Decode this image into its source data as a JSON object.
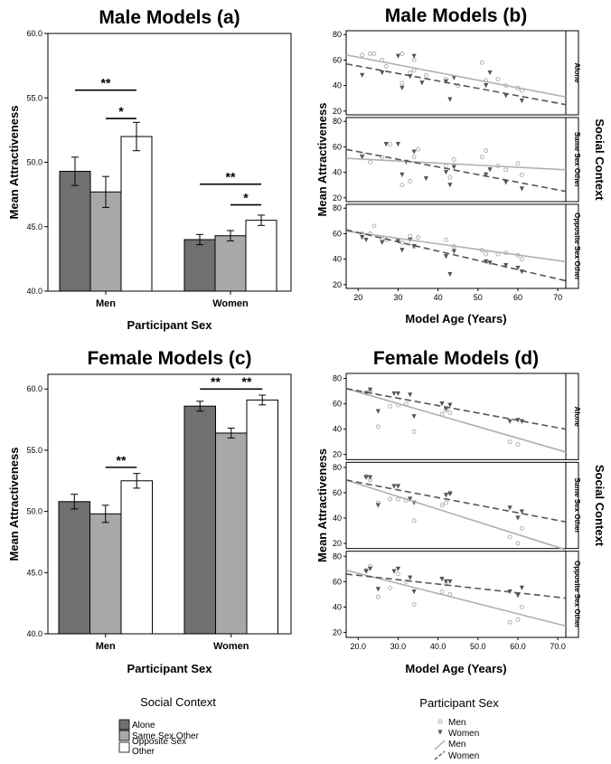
{
  "chart_data": [
    {
      "id": "a",
      "type": "bar",
      "title": "Male Models (a)",
      "xlabel": "Participant Sex",
      "ylabel": "Mean Attractiveness",
      "ylim": [
        40,
        60
      ],
      "yticks": [
        "40.0",
        "45.0",
        "50.0",
        "55.0",
        "60.0"
      ],
      "categories": [
        "Men",
        "Women"
      ],
      "series": [
        {
          "name": "Alone",
          "color": "#707070",
          "values": [
            49.3,
            44.0
          ],
          "error": [
            1.1,
            0.4
          ]
        },
        {
          "name": "Same Sex Other",
          "color": "#a8a8a8",
          "values": [
            47.7,
            44.3
          ],
          "error": [
            1.2,
            0.4
          ]
        },
        {
          "name": "Opposite Sex Other",
          "color": "#ffffff",
          "values": [
            52.0,
            45.5
          ],
          "error": [
            1.1,
            0.4
          ]
        }
      ],
      "significance": [
        {
          "label": "**",
          "group": 0,
          "from": 0,
          "to": 2,
          "y": 55.6
        },
        {
          "label": "*",
          "group": 0,
          "from": 1,
          "to": 2,
          "y": 53.4
        },
        {
          "label": "**",
          "group": 1,
          "from": 0,
          "to": 2,
          "y": 48.3
        },
        {
          "label": "*",
          "group": 1,
          "from": 1,
          "to": 2,
          "y": 46.7
        }
      ]
    },
    {
      "id": "b",
      "type": "scatter",
      "title": "Male Models (b)",
      "xlabel": "Model Age (Years)",
      "ylabel": "Mean Attractiveness",
      "facet_label": "Social Context",
      "xlim": [
        17,
        72
      ],
      "ylim": [
        17,
        83
      ],
      "xticks": [
        "20",
        "30",
        "40",
        "50",
        "60",
        "70"
      ],
      "yticks": [
        "20",
        "40",
        "60",
        "80"
      ],
      "panels": [
        {
          "name": "Alone",
          "men": [
            [
              21,
              64
            ],
            [
              23,
              65
            ],
            [
              24,
              65
            ],
            [
              26,
              60
            ],
            [
              27,
              55
            ],
            [
              31,
              42
            ],
            [
              31,
              65
            ],
            [
              33,
              50
            ],
            [
              34,
              60
            ],
            [
              34,
              52
            ],
            [
              37,
              48
            ],
            [
              42,
              45
            ],
            [
              45,
              40
            ],
            [
              51,
              58
            ],
            [
              52,
              44
            ],
            [
              55,
              45
            ],
            [
              57,
              40
            ],
            [
              60,
              38
            ],
            [
              61,
              36
            ]
          ],
          "women": [
            [
              21,
              48
            ],
            [
              26,
              50
            ],
            [
              30,
              63
            ],
            [
              31,
              38
            ],
            [
              33,
              47
            ],
            [
              34,
              63
            ],
            [
              36,
              42
            ],
            [
              42,
              43
            ],
            [
              43,
              29
            ],
            [
              44,
              46
            ],
            [
              52,
              40
            ],
            [
              53,
              50
            ],
            [
              57,
              32
            ],
            [
              61,
              28
            ]
          ],
          "men_line": [
            [
              17,
              64
            ],
            [
              72,
              31
            ]
          ],
          "women_line": [
            [
              17,
              57
            ],
            [
              72,
              25
            ]
          ]
        },
        {
          "name": "Same Sex Other",
          "men": [
            [
              21,
              54
            ],
            [
              23,
              48
            ],
            [
              26,
              52
            ],
            [
              28,
              62
            ],
            [
              31,
              30
            ],
            [
              33,
              33
            ],
            [
              34,
              52
            ],
            [
              35,
              58
            ],
            [
              42,
              45
            ],
            [
              43,
              36
            ],
            [
              44,
              50
            ],
            [
              51,
              52
            ],
            [
              52,
              57
            ],
            [
              55,
              45
            ],
            [
              57,
              42
            ],
            [
              60,
              47
            ],
            [
              61,
              38
            ]
          ],
          "women": [
            [
              21,
              52
            ],
            [
              27,
              62
            ],
            [
              30,
              62
            ],
            [
              31,
              38
            ],
            [
              32,
              48
            ],
            [
              34,
              56
            ],
            [
              37,
              35
            ],
            [
              42,
              40
            ],
            [
              43,
              30
            ],
            [
              44,
              44
            ],
            [
              52,
              38
            ],
            [
              53,
              42
            ],
            [
              57,
              32
            ],
            [
              61,
              27
            ]
          ],
          "men_line": [
            [
              17,
              51
            ],
            [
              72,
              42
            ]
          ],
          "women_line": [
            [
              17,
              58
            ],
            [
              72,
              25
            ]
          ]
        },
        {
          "name": "Opposite Sex Other",
          "men": [
            [
              21,
              60
            ],
            [
              23,
              60
            ],
            [
              24,
              66
            ],
            [
              26,
              56
            ],
            [
              27,
              55
            ],
            [
              31,
              53
            ],
            [
              33,
              58
            ],
            [
              34,
              50
            ],
            [
              35,
              57
            ],
            [
              42,
              55
            ],
            [
              44,
              50
            ],
            [
              51,
              47
            ],
            [
              52,
              44
            ],
            [
              55,
              44
            ],
            [
              57,
              45
            ],
            [
              60,
              43
            ],
            [
              61,
              40
            ]
          ],
          "women": [
            [
              21,
              57
            ],
            [
              22,
              55
            ],
            [
              26,
              53
            ],
            [
              30,
              54
            ],
            [
              31,
              47
            ],
            [
              33,
              55
            ],
            [
              34,
              50
            ],
            [
              42,
              42
            ],
            [
              43,
              28
            ],
            [
              44,
              46
            ],
            [
              52,
              38
            ],
            [
              53,
              37
            ],
            [
              57,
              35
            ],
            [
              60,
              33
            ],
            [
              61,
              30
            ]
          ],
          "men_line": [
            [
              17,
              62
            ],
            [
              72,
              38
            ]
          ],
          "women_line": [
            [
              17,
              63
            ],
            [
              72,
              23
            ]
          ]
        }
      ]
    },
    {
      "id": "c",
      "type": "bar",
      "title": "Female Models (c)",
      "xlabel": "Participant Sex",
      "ylabel": "Mean Attractiveness",
      "ylim": [
        40,
        61.2
      ],
      "yticks": [
        "40.0",
        "45.0",
        "50.0",
        "55.0",
        "60.0"
      ],
      "categories": [
        "Men",
        "Women"
      ],
      "series": [
        {
          "name": "Alone",
          "color": "#707070",
          "values": [
            50.8,
            58.6
          ],
          "error": [
            0.6,
            0.4
          ]
        },
        {
          "name": "Same Sex Other",
          "color": "#a8a8a8",
          "values": [
            49.8,
            56.4
          ],
          "error": [
            0.7,
            0.4
          ]
        },
        {
          "name": "Opposite Sex Other",
          "color": "#ffffff",
          "values": [
            52.5,
            59.1
          ],
          "error": [
            0.6,
            0.4
          ]
        }
      ],
      "significance": [
        {
          "label": "**",
          "group": 0,
          "from": 1,
          "to": 2,
          "y": 53.6
        },
        {
          "label": "**",
          "group": 1,
          "from": 0,
          "to": 1,
          "y": 60.0
        },
        {
          "label": "**",
          "group": 1,
          "from": 1,
          "to": 2,
          "y": 60.0
        }
      ]
    },
    {
      "id": "d",
      "type": "scatter",
      "title": "Female Models (d)",
      "xlabel": "Model Age (Years)",
      "ylabel": "Mean Attractiveness",
      "facet_label": "Social Context",
      "xlim": [
        17,
        72
      ],
      "ylim": [
        16,
        84
      ],
      "xticks": [
        "20.0",
        "30.0",
        "40.0",
        "50.0",
        "60.0",
        "70.0"
      ],
      "yticks": [
        "20",
        "40",
        "60",
        "80"
      ],
      "panels": [
        {
          "name": "Alone",
          "men": [
            [
              22,
              69
            ],
            [
              23,
              70
            ],
            [
              25,
              42
            ],
            [
              28,
              58
            ],
            [
              30,
              59
            ],
            [
              32,
              60
            ],
            [
              34,
              38
            ],
            [
              41,
              52
            ],
            [
              42,
              55
            ],
            [
              43,
              53
            ],
            [
              58,
              30
            ],
            [
              60,
              28
            ]
          ],
          "women": [
            [
              22,
              68
            ],
            [
              23,
              71
            ],
            [
              25,
              54
            ],
            [
              29,
              68
            ],
            [
              30,
              68
            ],
            [
              33,
              67
            ],
            [
              34,
              50
            ],
            [
              41,
              60
            ],
            [
              42,
              56
            ],
            [
              43,
              59
            ],
            [
              58,
              46
            ],
            [
              60,
              47
            ],
            [
              61,
              46
            ]
          ],
          "men_line": [
            [
              17,
              72
            ],
            [
              72,
              22
            ]
          ],
          "women_line": [
            [
              17,
              72
            ],
            [
              72,
              40
            ]
          ]
        },
        {
          "name": "Same Sex Other",
          "men": [
            [
              22,
              73
            ],
            [
              23,
              70
            ],
            [
              25,
              52
            ],
            [
              28,
              55
            ],
            [
              30,
              55
            ],
            [
              32,
              54
            ],
            [
              34,
              38
            ],
            [
              41,
              50
            ],
            [
              42,
              52
            ],
            [
              43,
              60
            ],
            [
              58,
              25
            ],
            [
              60,
              20
            ],
            [
              61,
              32
            ]
          ],
          "women": [
            [
              22,
              72
            ],
            [
              23,
              72
            ],
            [
              25,
              50
            ],
            [
              29,
              65
            ],
            [
              30,
              65
            ],
            [
              33,
              55
            ],
            [
              34,
              52
            ],
            [
              42,
              58
            ],
            [
              43,
              59
            ],
            [
              58,
              48
            ],
            [
              60,
              40
            ],
            [
              61,
              45
            ]
          ],
          "men_line": [
            [
              17,
              70
            ],
            [
              72,
              15
            ]
          ],
          "women_line": [
            [
              17,
              70
            ],
            [
              72,
              37
            ]
          ]
        },
        {
          "name": "Opposite Sex Other",
          "men": [
            [
              22,
              69
            ],
            [
              23,
              72
            ],
            [
              25,
              48
            ],
            [
              28,
              55
            ],
            [
              30,
              66
            ],
            [
              32,
              60
            ],
            [
              34,
              42
            ],
            [
              41,
              52
            ],
            [
              42,
              58
            ],
            [
              43,
              50
            ],
            [
              58,
              28
            ],
            [
              60,
              30
            ],
            [
              61,
              40
            ]
          ],
          "women": [
            [
              22,
              68
            ],
            [
              23,
              70
            ],
            [
              25,
              54
            ],
            [
              29,
              68
            ],
            [
              30,
              70
            ],
            [
              33,
              63
            ],
            [
              34,
              52
            ],
            [
              41,
              62
            ],
            [
              42,
              60
            ],
            [
              43,
              60
            ],
            [
              58,
              52
            ],
            [
              60,
              49
            ],
            [
              61,
              55
            ]
          ],
          "men_line": [
            [
              17,
              69
            ],
            [
              72,
              25
            ]
          ],
          "women_line": [
            [
              17,
              66
            ],
            [
              72,
              47
            ]
          ]
        }
      ]
    }
  ],
  "legends": {
    "social_context": {
      "title": "Social Context",
      "items": [
        "Alone",
        "Same Sex Other",
        "Opposite Sex Other"
      ]
    },
    "participant_sex": {
      "title": "Participant Sex",
      "markers": [
        "Men",
        "Women"
      ],
      "lines": [
        "Men",
        "Women"
      ]
    }
  },
  "colors": {
    "alone": "#707070",
    "same": "#a8a8a8",
    "opposite": "#ffffff",
    "men": "#aaaaaa",
    "women": "#555555"
  }
}
